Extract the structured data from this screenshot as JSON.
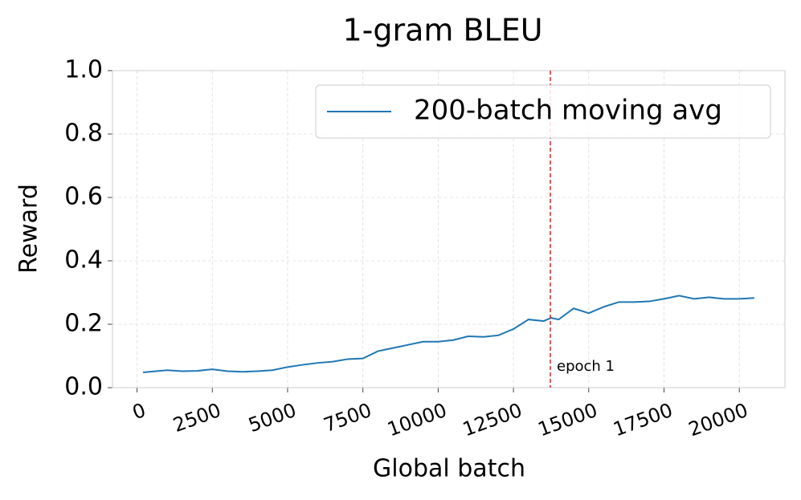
{
  "chart_data": {
    "type": "line",
    "title": "1-gram BLEU",
    "x_label": "Global batch",
    "y_label": "Reward",
    "x": [
      200,
      1000,
      1500,
      2000,
      2500,
      3000,
      3500,
      4000,
      4500,
      5000,
      5500,
      6000,
      6500,
      7000,
      7500,
      8000,
      8500,
      9000,
      9500,
      10000,
      10500,
      11000,
      11500,
      12000,
      12500,
      13000,
      13500,
      13750,
      14000,
      14500,
      15000,
      15500,
      16000,
      16500,
      17000,
      17500,
      18000,
      18500,
      19000,
      19500,
      20000,
      20500
    ],
    "series": [
      {
        "name": "200-batch moving avg",
        "color": "#1f77b4",
        "values": [
          0.048,
          0.055,
          0.052,
          0.053,
          0.058,
          0.052,
          0.05,
          0.052,
          0.055,
          0.065,
          0.072,
          0.078,
          0.082,
          0.09,
          0.092,
          0.115,
          0.125,
          0.135,
          0.145,
          0.145,
          0.15,
          0.162,
          0.16,
          0.165,
          0.185,
          0.215,
          0.21,
          0.22,
          0.215,
          0.25,
          0.235,
          0.255,
          0.27,
          0.27,
          0.272,
          0.28,
          0.29,
          0.28,
          0.285,
          0.28,
          0.28,
          0.283
        ]
      }
    ],
    "vlines": [
      {
        "x": 13725,
        "color": "#d62728",
        "label": "epoch 1"
      }
    ],
    "xlim": [
      -815,
      21515
    ],
    "ylim": [
      0,
      1
    ],
    "xticks": [
      0,
      2500,
      5000,
      7500,
      10000,
      12500,
      15000,
      17500,
      20000
    ],
    "yticks": [
      {
        "value": 0,
        "label": "0.0"
      },
      0.2,
      0.4,
      0.6,
      0.8,
      {
        "value": 1,
        "label": "1.0"
      }
    ],
    "grid": true,
    "legend": "upper right"
  }
}
